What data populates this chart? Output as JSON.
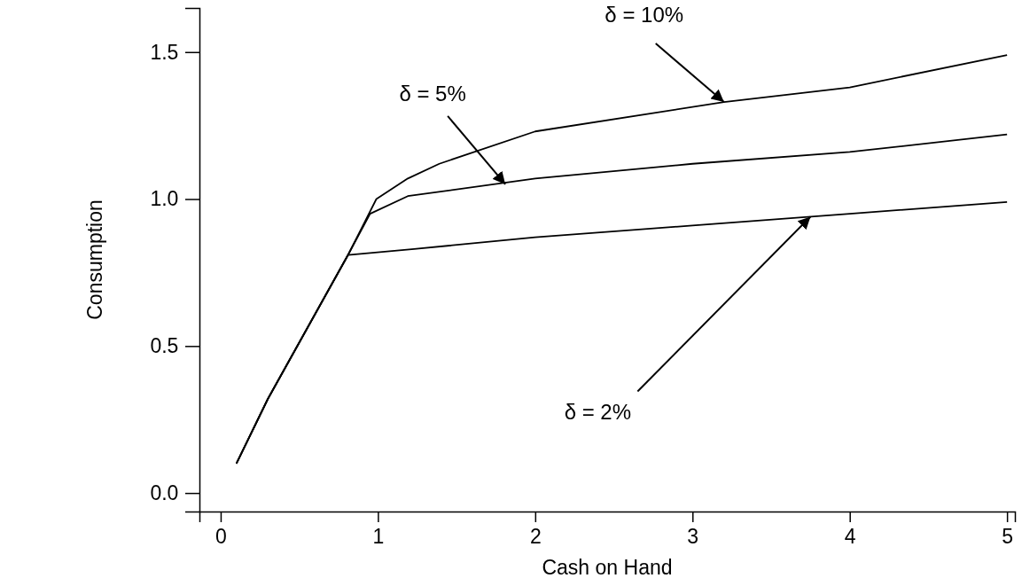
{
  "chart_data": {
    "type": "line",
    "xlabel": "Cash on Hand",
    "ylabel": "Consumption",
    "xlim": [
      -0.135,
      5.05
    ],
    "ylim": [
      -0.063,
      1.65
    ],
    "xticks": [
      0,
      1,
      2,
      3,
      4,
      5
    ],
    "yticks": [
      {
        "value": 0,
        "label": "0.0"
      },
      {
        "value": 0.5,
        "label": "0.5"
      },
      {
        "value": 1,
        "label": "1.0"
      },
      {
        "value": 1.5,
        "label": "1.5"
      }
    ],
    "series": [
      {
        "color": "#000000",
        "x": [
          0.1,
          0.3,
          0.81,
          1.23,
          2,
          3,
          4,
          5
        ],
        "values": [
          0.1,
          0.32,
          0.81,
          0.83,
          0.87,
          0.91,
          0.95,
          0.99
        ]
      },
      {
        "color": "#000000",
        "x": [
          0.1,
          0.3,
          0.81,
          0.95,
          1.19,
          2,
          3,
          4,
          5
        ],
        "values": [
          0.1,
          0.32,
          0.81,
          0.95,
          1.01,
          1.07,
          1.12,
          1.16,
          1.22
        ]
      },
      {
        "color": "#000000",
        "x": [
          0.1,
          0.3,
          0.81,
          0.99,
          1.19,
          1.39,
          2,
          3.2,
          4,
          5
        ],
        "values": [
          0.1,
          0.32,
          0.81,
          1.0,
          1.07,
          1.12,
          1.23,
          1.33,
          1.38,
          1.49
        ]
      }
    ],
    "annotations": [
      {
        "text": "δ = 10%",
        "x": 3.2,
        "y": 1.33
      },
      {
        "text": "δ = 5%",
        "x": 1.81,
        "y": 1.05
      },
      {
        "text": "δ = 2%",
        "x": 3.75,
        "y": 0.94
      }
    ],
    "grid": false,
    "marker": "none",
    "line_style": "solid"
  }
}
